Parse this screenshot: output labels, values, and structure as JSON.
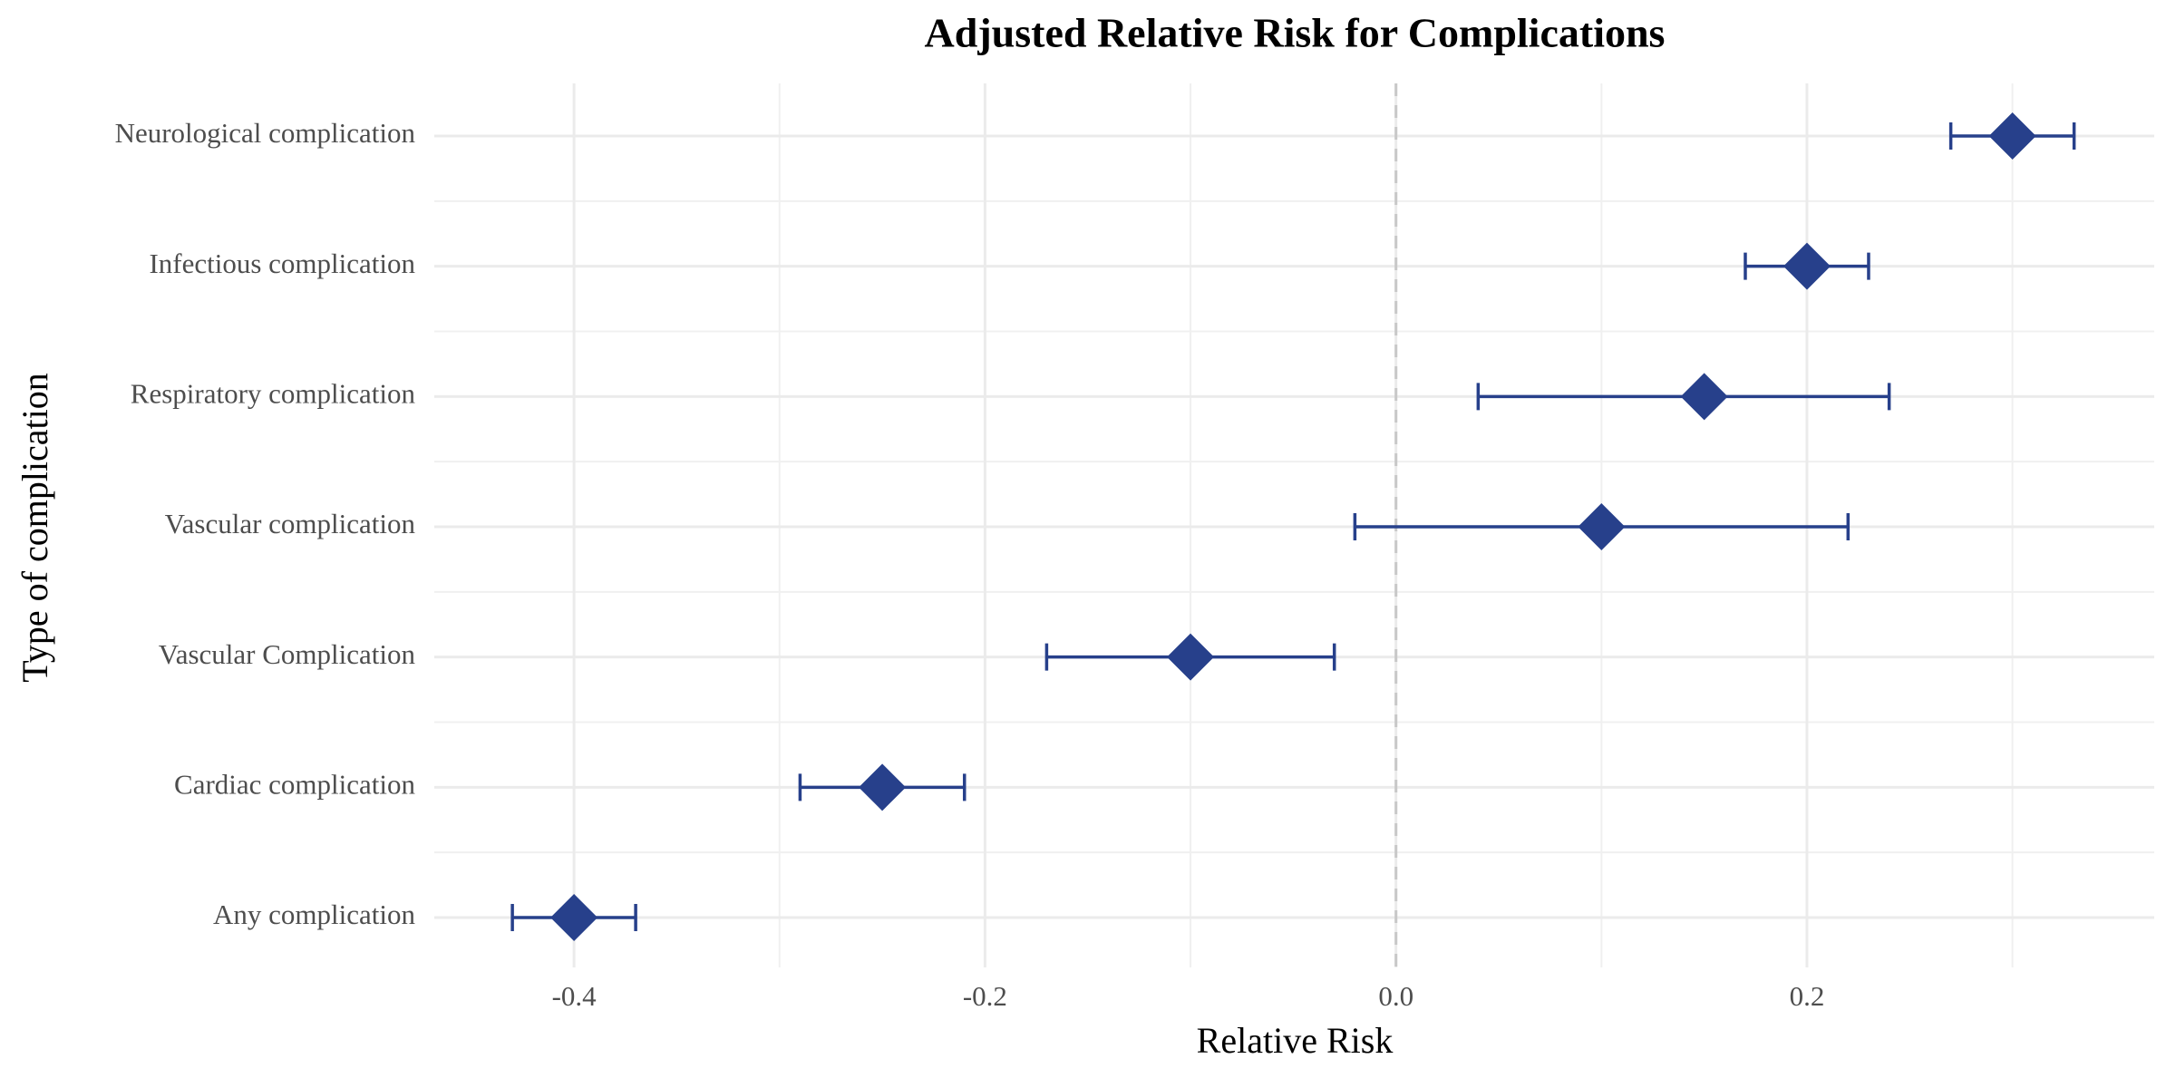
{
  "chart_data": {
    "type": "forest",
    "title": "Adjusted Relative Risk for Complications",
    "x_label": "Relative Risk",
    "y_label": "Type of complication",
    "categories": [
      "Any complication",
      "Cardiac complication",
      "Vascular Complication",
      "Vascular complication",
      "Respiratory complication",
      "Infectious complication",
      "Neurological complication"
    ],
    "values": [
      -0.4,
      -0.25,
      -0.1,
      0.1,
      0.15,
      0.2,
      0.3
    ],
    "lower": [
      -0.43,
      -0.29,
      -0.17,
      -0.02,
      0.04,
      0.17,
      0.27
    ],
    "upper": [
      -0.37,
      -0.21,
      -0.03,
      0.22,
      0.24,
      0.23,
      0.33
    ],
    "color": "#27408b",
    "xlim": [
      -0.468,
      0.369
    ],
    "xticks": [
      -0.4,
      -0.2,
      {
        "value": 0,
        "label": "0.0"
      },
      0.2
    ],
    "x_minor_gridlines": [
      -0.3,
      -0.1,
      0.1,
      0.3
    ],
    "ref_line": 0,
    "grid": true
  }
}
